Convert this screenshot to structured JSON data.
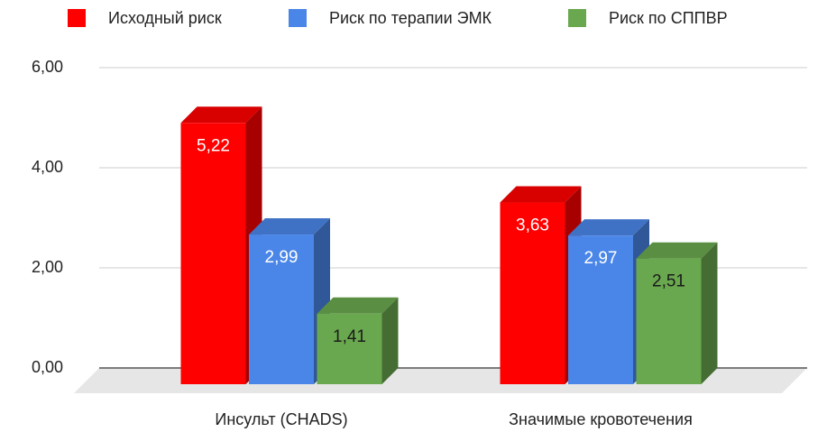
{
  "chart_data": {
    "type": "bar3d",
    "categories": [
      "Инсульт (CHADS)",
      "Значимые кровотечения"
    ],
    "series": [
      {
        "name": "Исходный риск",
        "color": "#ff0000",
        "values": [
          5.22,
          3.63
        ],
        "value_labels": [
          "5,22",
          "3,63"
        ]
      },
      {
        "name": "Риск по терапии ЭМК",
        "color": "#4a86e8",
        "values": [
          2.99,
          2.97
        ],
        "value_labels": [
          "2,99",
          "2,97"
        ]
      },
      {
        "name": "Риск по СППВР",
        "color": "#6aa84f",
        "values": [
          1.41,
          2.51
        ],
        "value_labels": [
          "1,41",
          "2,51"
        ]
      }
    ],
    "ylim": [
      0,
      6
    ],
    "yticks": [
      {
        "value": 0,
        "label": "0,00"
      },
      {
        "value": 2,
        "label": "2,00"
      },
      {
        "value": 4,
        "label": "4,00"
      },
      {
        "value": 6,
        "label": "6,00"
      }
    ],
    "grid": true,
    "legend": "top"
  }
}
